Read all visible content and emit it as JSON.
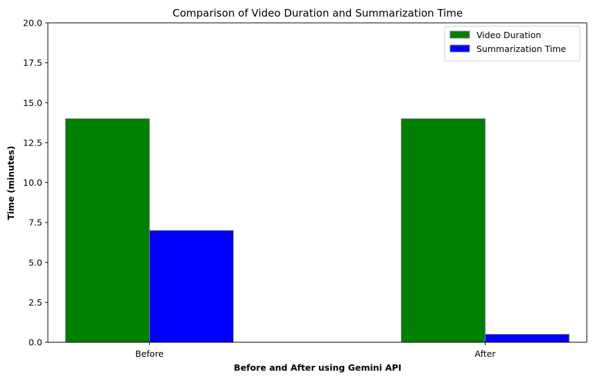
{
  "chart_data": {
    "type": "bar",
    "title": "Comparison of Video Duration and Summarization Time",
    "xlabel": "Before and After using Gemini API",
    "ylabel": "Time (minutes)",
    "categories": [
      "Before",
      "After"
    ],
    "ylim": [
      0,
      20
    ],
    "yticks": [
      "0.0",
      "2.5",
      "5.0",
      "7.5",
      "10.0",
      "12.5",
      "15.0",
      "17.5",
      "20.0"
    ],
    "grid": false,
    "legend_position": "top-right",
    "series": [
      {
        "name": "Video Duration",
        "values": [
          14,
          14
        ],
        "color": "#008000"
      },
      {
        "name": "Summarization Time",
        "values": [
          7,
          0.5
        ],
        "color": "#0000ff"
      }
    ],
    "bar_edge_color": "#808080"
  }
}
